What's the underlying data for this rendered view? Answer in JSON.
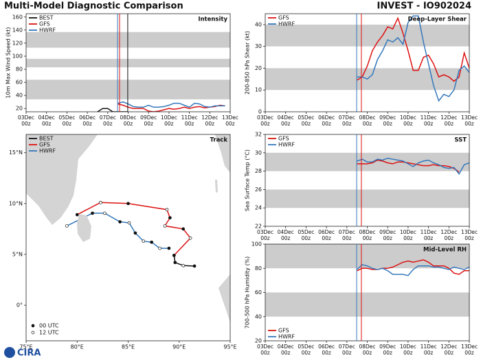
{
  "header": {
    "title": "Multi-Model Diagnostic Comparison",
    "storm": "INVEST - IO902024",
    "logo": "CIRA"
  },
  "chart_data": [
    {
      "type": "line",
      "title": "Intensity",
      "y_label": "10m Max Wind Speed (kt)",
      "xlim": [
        0,
        10
      ],
      "xticks": [
        {
          "value": 0,
          "label": "03Dec\n00z"
        },
        {
          "value": 1,
          "label": "04Dec\n00z"
        },
        {
          "value": 2,
          "label": "05Dec\n00z"
        },
        {
          "value": 3,
          "label": "06Dec\n00z"
        },
        {
          "value": 4,
          "label": "07Dec\n00z"
        },
        {
          "value": 5,
          "label": "08Dec\n00z"
        },
        {
          "value": 6,
          "label": "09Dec\n00z"
        },
        {
          "value": 7,
          "label": "10Dec\n00z"
        },
        {
          "value": 8,
          "label": "11Dec\n00z"
        },
        {
          "value": 9,
          "label": "12Dec\n00z"
        },
        {
          "value": 10,
          "label": "13Dec\n00z"
        }
      ],
      "ylim": [
        15,
        165
      ],
      "yticks": [
        20,
        40,
        60,
        80,
        100,
        120,
        140,
        160
      ],
      "bands": [
        [
          34,
          64
        ],
        [
          83,
          96
        ],
        [
          113,
          137
        ]
      ],
      "legend": "upper left",
      "time_markers": [
        {
          "x": 4.48,
          "color": "#3377bb"
        },
        {
          "x": 4.58,
          "color": "#dd1111"
        },
        {
          "x": 4.98,
          "color": "#111111"
        }
      ],
      "series": [
        {
          "name": "BEST",
          "color": "#111111",
          "x": [
            3.5,
            3.75,
            4,
            4.25,
            4.5,
            4.75,
            5
          ],
          "values": [
            15,
            20,
            20,
            15,
            15,
            15,
            15
          ]
        },
        {
          "name": "GFS",
          "color": "#dd1111",
          "x": [
            4.5,
            4.75,
            5,
            5.25,
            5.5,
            5.75,
            6,
            6.25,
            6.5,
            6.75,
            7,
            7.25,
            7.5,
            7.75,
            8,
            8.25,
            8.5,
            8.75,
            9,
            9.25,
            9.5,
            9.75
          ],
          "values": [
            27,
            25,
            22,
            20,
            20,
            20,
            16,
            15,
            16,
            18,
            20,
            19,
            20,
            22,
            20,
            22,
            23,
            21,
            22,
            23,
            25,
            24
          ]
        },
        {
          "name": "HWRF",
          "color": "#3377bb",
          "x": [
            4.5,
            4.75,
            5,
            5.25,
            5.5,
            5.75,
            6,
            6.25,
            6.5,
            6.75,
            7,
            7.25,
            7.5,
            7.75,
            8,
            8.25,
            8.5,
            8.75,
            9,
            9.25,
            9.5,
            9.75
          ],
          "values": [
            28,
            30,
            27,
            23,
            22,
            22,
            25,
            22,
            22,
            23,
            25,
            28,
            28,
            25,
            22,
            28,
            27,
            23,
            22,
            24,
            24,
            24
          ]
        }
      ]
    },
    {
      "type": "track",
      "title": "Track",
      "xlim": [
        75,
        95
      ],
      "xticks": [
        {
          "value": 75,
          "label": "75°E"
        },
        {
          "value": 80,
          "label": "80°E"
        },
        {
          "value": 85,
          "label": "85°E"
        },
        {
          "value": 90,
          "label": "90°E"
        },
        {
          "value": 95,
          "label": "95°E"
        }
      ],
      "ylim": [
        -3.5,
        16.8
      ],
      "yticks": [
        {
          "value": 0,
          "label": "0°"
        },
        {
          "value": 5,
          "label": "5°N"
        },
        {
          "value": 10,
          "label": "10°N"
        },
        {
          "value": 15,
          "label": "15°N"
        }
      ],
      "legend": "upper left",
      "marker_legend": [
        "00 UTC",
        "12 UTC"
      ],
      "series": [
        {
          "name": "BEST",
          "color": "#111111",
          "lon": [
            91.5,
            90.4,
            89.6,
            89.5
          ],
          "lat": [
            3.85,
            3.9,
            4.2,
            4.9
          ]
        },
        {
          "name": "GFS",
          "color": "#dd1111",
          "lon": [
            89.5,
            91.1,
            90.4,
            88.6,
            89.1,
            88.8,
            85.0,
            82.3,
            80.0
          ],
          "lat": [
            4.9,
            6.6,
            7.5,
            7.8,
            8.6,
            9.4,
            10.0,
            10.1,
            8.9
          ]
        },
        {
          "name": "HWRF",
          "color": "#3377bb",
          "lon": [
            89.0,
            88.1,
            87.3,
            86.5,
            85.7,
            85.1,
            84.2,
            82.7,
            81.5,
            79.0
          ],
          "lat": [
            5.6,
            5.6,
            6.2,
            6.3,
            7.1,
            8.1,
            8.2,
            9.05,
            9.05,
            7.8
          ]
        }
      ]
    },
    {
      "type": "line",
      "title": "Deep-Layer Shear",
      "y_label": "200-850 hPa Shear (kt)",
      "xlim": [
        0,
        10
      ],
      "xticks": [
        {
          "value": 0,
          "label": "03Dec\n00z"
        },
        {
          "value": 1,
          "label": "04Dec\n00z"
        },
        {
          "value": 2,
          "label": "05Dec\n00z"
        },
        {
          "value": 3,
          "label": "06Dec\n00z"
        },
        {
          "value": 4,
          "label": "07Dec\n00z"
        },
        {
          "value": 5,
          "label": "08Dec\n00z"
        },
        {
          "value": 6,
          "label": "09Dec\n00z"
        },
        {
          "value": 7,
          "label": "10Dec\n00z"
        },
        {
          "value": 8,
          "label": "11Dec\n00z"
        },
        {
          "value": 9,
          "label": "12Dec\n00z"
        },
        {
          "value": 10,
          "label": "13Dec\n00z"
        }
      ],
      "ylim": [
        0,
        45
      ],
      "yticks": [
        0,
        10,
        20,
        30,
        40
      ],
      "bands": [
        [
          10,
          20
        ],
        [
          30,
          40
        ]
      ],
      "legend": "upper left",
      "time_markers": [
        {
          "x": 4.48,
          "color": "#3377bb"
        },
        {
          "x": 4.71,
          "color": "#dd1111"
        }
      ],
      "series": [
        {
          "name": "GFS",
          "color": "#dd1111",
          "x": [
            4.5,
            4.75,
            5,
            5.25,
            5.5,
            5.75,
            6,
            6.25,
            6.5,
            6.75,
            7,
            7.25,
            7.5,
            7.75,
            8,
            8.25,
            8.5,
            8.75,
            9,
            9.25,
            9.5,
            9.75,
            10
          ],
          "values": [
            14.5,
            16,
            21,
            28,
            32,
            35,
            39,
            38,
            43,
            36,
            28,
            19,
            19,
            25,
            26,
            22,
            16,
            17,
            16,
            14,
            16,
            27,
            20
          ]
        },
        {
          "name": "HWRF",
          "color": "#3377bb",
          "x": [
            4.5,
            4.75,
            5,
            5.25,
            5.5,
            5.75,
            6,
            6.25,
            6.5,
            6.75,
            7,
            7.25,
            7.5,
            7.75,
            8,
            8.25,
            8.5,
            8.75,
            9,
            9.25,
            9.5,
            9.75,
            10
          ],
          "values": [
            16,
            16,
            15,
            17,
            24,
            28,
            33,
            32,
            34,
            31,
            41,
            44,
            44,
            32,
            22,
            12,
            5,
            8,
            7,
            10,
            19,
            21,
            18
          ]
        }
      ]
    },
    {
      "type": "line",
      "title": "SST",
      "y_label": "Sea Surface Temp (°C)",
      "xlim": [
        0,
        10
      ],
      "xticks": [
        {
          "value": 0,
          "label": "03Dec\n00z"
        },
        {
          "value": 1,
          "label": "04Dec\n00z"
        },
        {
          "value": 2,
          "label": "05Dec\n00z"
        },
        {
          "value": 3,
          "label": "06Dec\n00z"
        },
        {
          "value": 4,
          "label": "07Dec\n00z"
        },
        {
          "value": 5,
          "label": "08Dec\n00z"
        },
        {
          "value": 6,
          "label": "09Dec\n00z"
        },
        {
          "value": 7,
          "label": "10Dec\n00z"
        },
        {
          "value": 8,
          "label": "11Dec\n00z"
        },
        {
          "value": 9,
          "label": "12Dec\n00z"
        },
        {
          "value": 10,
          "label": "13Dec\n00z"
        }
      ],
      "ylim": [
        22,
        32
      ],
      "yticks": [
        22,
        24,
        26,
        28,
        30,
        32
      ],
      "bands": [
        [
          24,
          26
        ],
        [
          28,
          30
        ]
      ],
      "legend": "upper left",
      "time_markers": [
        {
          "x": 4.48,
          "color": "#3377bb"
        },
        {
          "x": 4.71,
          "color": "#dd1111"
        }
      ],
      "series": [
        {
          "name": "GFS",
          "color": "#dd1111",
          "x": [
            4.5,
            4.75,
            5,
            5.25,
            5.5,
            5.75,
            6,
            6.25,
            6.5,
            6.75,
            7,
            7.25,
            7.5,
            7.75,
            8,
            8.25,
            8.5,
            8.75,
            9,
            9.25,
            9.5
          ],
          "values": [
            28.8,
            28.8,
            28.8,
            28.9,
            29.2,
            29.1,
            28.9,
            28.8,
            29.0,
            29.0,
            28.9,
            28.8,
            28.7,
            28.6,
            28.6,
            28.7,
            28.6,
            28.6,
            28.5,
            28.3,
            27.9
          ]
        },
        {
          "name": "HWRF",
          "color": "#3377bb",
          "x": [
            4.5,
            4.75,
            5,
            5.25,
            5.5,
            5.75,
            6,
            6.25,
            6.5,
            6.75,
            7,
            7.25,
            7.5,
            7.75,
            8,
            8.25,
            8.5,
            8.75,
            9,
            9.25,
            9.5,
            9.75,
            10
          ],
          "values": [
            29.1,
            29.3,
            29.0,
            29.0,
            29.3,
            29.2,
            29.4,
            29.3,
            29.2,
            29.1,
            28.8,
            28.5,
            28.9,
            29.1,
            29.2,
            28.9,
            28.7,
            28.4,
            28.3,
            28.4,
            27.7,
            28.7,
            28.9
          ]
        }
      ]
    },
    {
      "type": "line",
      "title": "Mid-Level RH",
      "y_label": "700-500 hPa Humidity (%)",
      "xlim": [
        0,
        10
      ],
      "xticks": [
        {
          "value": 0,
          "label": "03Dec\n00z"
        },
        {
          "value": 1,
          "label": "04Dec\n00z"
        },
        {
          "value": 2,
          "label": "05Dec\n00z"
        },
        {
          "value": 3,
          "label": "06Dec\n00z"
        },
        {
          "value": 4,
          "label": "07Dec\n00z"
        },
        {
          "value": 5,
          "label": "08Dec\n00z"
        },
        {
          "value": 6,
          "label": "09Dec\n00z"
        },
        {
          "value": 7,
          "label": "10Dec\n00z"
        },
        {
          "value": 8,
          "label": "11Dec\n00z"
        },
        {
          "value": 9,
          "label": "12Dec\n00z"
        },
        {
          "value": 10,
          "label": "13Dec\n00z"
        }
      ],
      "ylim": [
        20,
        100
      ],
      "yticks": [
        20,
        40,
        60,
        80,
        100
      ],
      "bands": [
        [
          40,
          60
        ],
        [
          80,
          100
        ]
      ],
      "legend": "lower left",
      "time_markers": [
        {
          "x": 4.48,
          "color": "#3377bb"
        },
        {
          "x": 4.71,
          "color": "#dd1111"
        }
      ],
      "series": [
        {
          "name": "GFS",
          "color": "#dd1111",
          "x": [
            4.5,
            4.75,
            5,
            5.25,
            5.5,
            5.75,
            6,
            6.25,
            6.5,
            6.75,
            7,
            7.25,
            7.5,
            7.75,
            8,
            8.25,
            8.5,
            8.75,
            9,
            9.25,
            9.5,
            9.75,
            10
          ],
          "values": [
            78,
            80,
            80,
            79,
            79,
            80,
            80,
            81,
            83,
            85,
            86,
            85,
            86,
            87,
            85,
            82,
            82,
            82,
            80,
            76,
            75,
            78,
            78
          ]
        },
        {
          "name": "HWRF",
          "color": "#3377bb",
          "x": [
            4.5,
            4.75,
            5,
            5.25,
            5.5,
            5.75,
            6,
            6.25,
            6.5,
            6.75,
            7,
            7.25,
            7.5,
            7.75,
            8,
            8.25,
            8.5,
            8.75,
            9,
            9.25,
            9.5,
            9.75,
            10
          ],
          "values": [
            79,
            83,
            82,
            80,
            79,
            80,
            78,
            75,
            75,
            75,
            74,
            79,
            82,
            82,
            82,
            81,
            81,
            80,
            79,
            81,
            80,
            79,
            81
          ]
        }
      ]
    }
  ]
}
